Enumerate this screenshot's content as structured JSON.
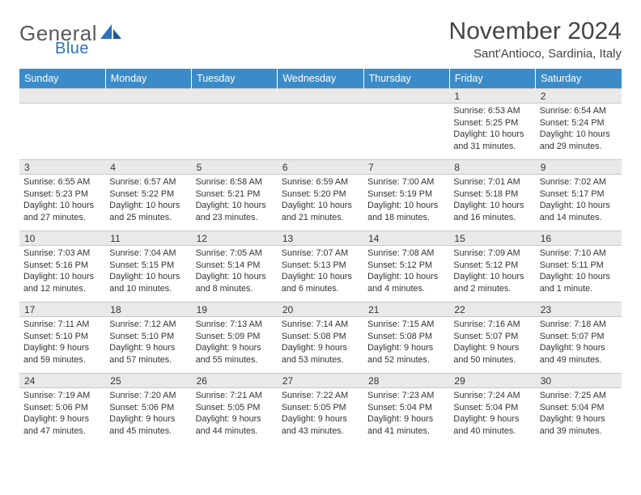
{
  "logo": {
    "general": "General",
    "blue": "Blue"
  },
  "title": "November 2024",
  "location": "Sant'Antioco, Sardinia, Italy",
  "colors": {
    "header_bg": "#3b8bc9",
    "header_text": "#ffffff",
    "daynum_bg": "#e9e9e9",
    "border": "#c8c8c8",
    "text": "#333333",
    "logo_gray": "#5a5a5a",
    "logo_blue": "#2d73b6"
  },
  "weekdays": [
    "Sunday",
    "Monday",
    "Tuesday",
    "Wednesday",
    "Thursday",
    "Friday",
    "Saturday"
  ],
  "weeks": [
    [
      {
        "day": "",
        "sunrise": "",
        "sunset": "",
        "dayl1": "",
        "dayl2": ""
      },
      {
        "day": "",
        "sunrise": "",
        "sunset": "",
        "dayl1": "",
        "dayl2": ""
      },
      {
        "day": "",
        "sunrise": "",
        "sunset": "",
        "dayl1": "",
        "dayl2": ""
      },
      {
        "day": "",
        "sunrise": "",
        "sunset": "",
        "dayl1": "",
        "dayl2": ""
      },
      {
        "day": "",
        "sunrise": "",
        "sunset": "",
        "dayl1": "",
        "dayl2": ""
      },
      {
        "day": "1",
        "sunrise": "Sunrise: 6:53 AM",
        "sunset": "Sunset: 5:25 PM",
        "dayl1": "Daylight: 10 hours",
        "dayl2": "and 31 minutes."
      },
      {
        "day": "2",
        "sunrise": "Sunrise: 6:54 AM",
        "sunset": "Sunset: 5:24 PM",
        "dayl1": "Daylight: 10 hours",
        "dayl2": "and 29 minutes."
      }
    ],
    [
      {
        "day": "3",
        "sunrise": "Sunrise: 6:55 AM",
        "sunset": "Sunset: 5:23 PM",
        "dayl1": "Daylight: 10 hours",
        "dayl2": "and 27 minutes."
      },
      {
        "day": "4",
        "sunrise": "Sunrise: 6:57 AM",
        "sunset": "Sunset: 5:22 PM",
        "dayl1": "Daylight: 10 hours",
        "dayl2": "and 25 minutes."
      },
      {
        "day": "5",
        "sunrise": "Sunrise: 6:58 AM",
        "sunset": "Sunset: 5:21 PM",
        "dayl1": "Daylight: 10 hours",
        "dayl2": "and 23 minutes."
      },
      {
        "day": "6",
        "sunrise": "Sunrise: 6:59 AM",
        "sunset": "Sunset: 5:20 PM",
        "dayl1": "Daylight: 10 hours",
        "dayl2": "and 21 minutes."
      },
      {
        "day": "7",
        "sunrise": "Sunrise: 7:00 AM",
        "sunset": "Sunset: 5:19 PM",
        "dayl1": "Daylight: 10 hours",
        "dayl2": "and 18 minutes."
      },
      {
        "day": "8",
        "sunrise": "Sunrise: 7:01 AM",
        "sunset": "Sunset: 5:18 PM",
        "dayl1": "Daylight: 10 hours",
        "dayl2": "and 16 minutes."
      },
      {
        "day": "9",
        "sunrise": "Sunrise: 7:02 AM",
        "sunset": "Sunset: 5:17 PM",
        "dayl1": "Daylight: 10 hours",
        "dayl2": "and 14 minutes."
      }
    ],
    [
      {
        "day": "10",
        "sunrise": "Sunrise: 7:03 AM",
        "sunset": "Sunset: 5:16 PM",
        "dayl1": "Daylight: 10 hours",
        "dayl2": "and 12 minutes."
      },
      {
        "day": "11",
        "sunrise": "Sunrise: 7:04 AM",
        "sunset": "Sunset: 5:15 PM",
        "dayl1": "Daylight: 10 hours",
        "dayl2": "and 10 minutes."
      },
      {
        "day": "12",
        "sunrise": "Sunrise: 7:05 AM",
        "sunset": "Sunset: 5:14 PM",
        "dayl1": "Daylight: 10 hours",
        "dayl2": "and 8 minutes."
      },
      {
        "day": "13",
        "sunrise": "Sunrise: 7:07 AM",
        "sunset": "Sunset: 5:13 PM",
        "dayl1": "Daylight: 10 hours",
        "dayl2": "and 6 minutes."
      },
      {
        "day": "14",
        "sunrise": "Sunrise: 7:08 AM",
        "sunset": "Sunset: 5:12 PM",
        "dayl1": "Daylight: 10 hours",
        "dayl2": "and 4 minutes."
      },
      {
        "day": "15",
        "sunrise": "Sunrise: 7:09 AM",
        "sunset": "Sunset: 5:12 PM",
        "dayl1": "Daylight: 10 hours",
        "dayl2": "and 2 minutes."
      },
      {
        "day": "16",
        "sunrise": "Sunrise: 7:10 AM",
        "sunset": "Sunset: 5:11 PM",
        "dayl1": "Daylight: 10 hours",
        "dayl2": "and 1 minute."
      }
    ],
    [
      {
        "day": "17",
        "sunrise": "Sunrise: 7:11 AM",
        "sunset": "Sunset: 5:10 PM",
        "dayl1": "Daylight: 9 hours",
        "dayl2": "and 59 minutes."
      },
      {
        "day": "18",
        "sunrise": "Sunrise: 7:12 AM",
        "sunset": "Sunset: 5:10 PM",
        "dayl1": "Daylight: 9 hours",
        "dayl2": "and 57 minutes."
      },
      {
        "day": "19",
        "sunrise": "Sunrise: 7:13 AM",
        "sunset": "Sunset: 5:09 PM",
        "dayl1": "Daylight: 9 hours",
        "dayl2": "and 55 minutes."
      },
      {
        "day": "20",
        "sunrise": "Sunrise: 7:14 AM",
        "sunset": "Sunset: 5:08 PM",
        "dayl1": "Daylight: 9 hours",
        "dayl2": "and 53 minutes."
      },
      {
        "day": "21",
        "sunrise": "Sunrise: 7:15 AM",
        "sunset": "Sunset: 5:08 PM",
        "dayl1": "Daylight: 9 hours",
        "dayl2": "and 52 minutes."
      },
      {
        "day": "22",
        "sunrise": "Sunrise: 7:16 AM",
        "sunset": "Sunset: 5:07 PM",
        "dayl1": "Daylight: 9 hours",
        "dayl2": "and 50 minutes."
      },
      {
        "day": "23",
        "sunrise": "Sunrise: 7:18 AM",
        "sunset": "Sunset: 5:07 PM",
        "dayl1": "Daylight: 9 hours",
        "dayl2": "and 49 minutes."
      }
    ],
    [
      {
        "day": "24",
        "sunrise": "Sunrise: 7:19 AM",
        "sunset": "Sunset: 5:06 PM",
        "dayl1": "Daylight: 9 hours",
        "dayl2": "and 47 minutes."
      },
      {
        "day": "25",
        "sunrise": "Sunrise: 7:20 AM",
        "sunset": "Sunset: 5:06 PM",
        "dayl1": "Daylight: 9 hours",
        "dayl2": "and 45 minutes."
      },
      {
        "day": "26",
        "sunrise": "Sunrise: 7:21 AM",
        "sunset": "Sunset: 5:05 PM",
        "dayl1": "Daylight: 9 hours",
        "dayl2": "and 44 minutes."
      },
      {
        "day": "27",
        "sunrise": "Sunrise: 7:22 AM",
        "sunset": "Sunset: 5:05 PM",
        "dayl1": "Daylight: 9 hours",
        "dayl2": "and 43 minutes."
      },
      {
        "day": "28",
        "sunrise": "Sunrise: 7:23 AM",
        "sunset": "Sunset: 5:04 PM",
        "dayl1": "Daylight: 9 hours",
        "dayl2": "and 41 minutes."
      },
      {
        "day": "29",
        "sunrise": "Sunrise: 7:24 AM",
        "sunset": "Sunset: 5:04 PM",
        "dayl1": "Daylight: 9 hours",
        "dayl2": "and 40 minutes."
      },
      {
        "day": "30",
        "sunrise": "Sunrise: 7:25 AM",
        "sunset": "Sunset: 5:04 PM",
        "dayl1": "Daylight: 9 hours",
        "dayl2": "and 39 minutes."
      }
    ]
  ]
}
